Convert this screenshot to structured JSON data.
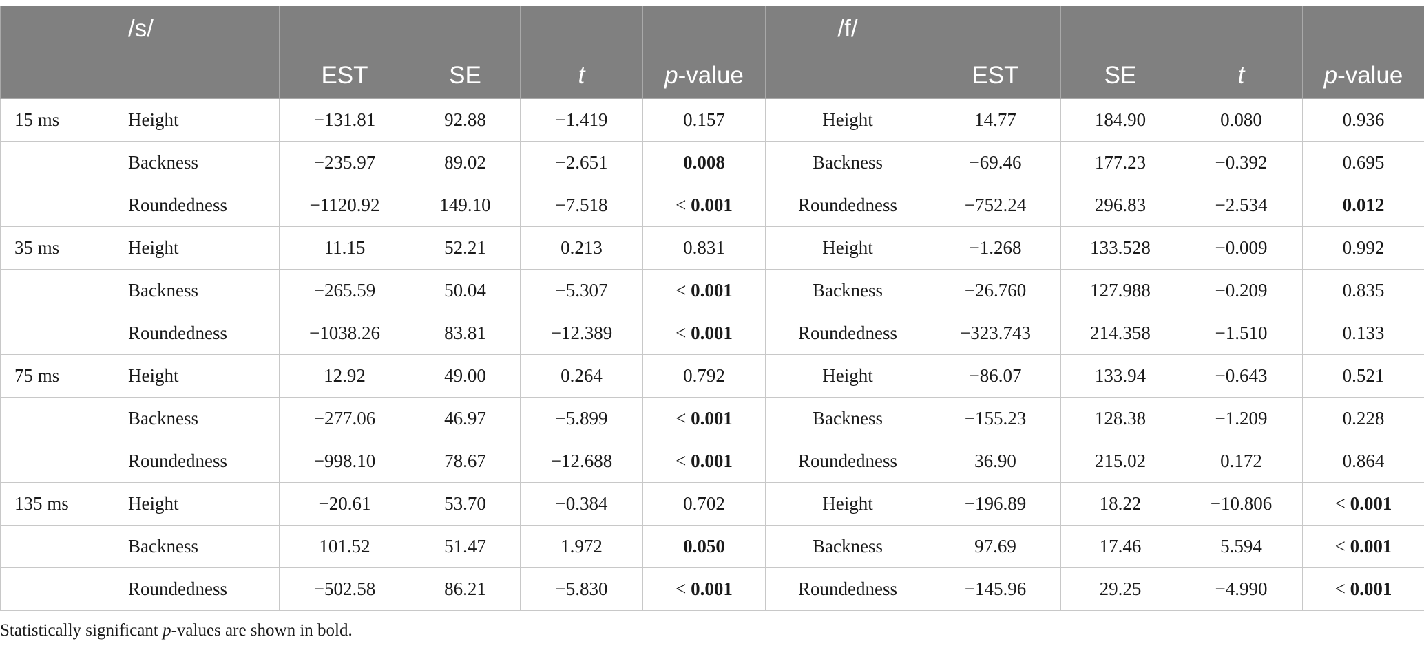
{
  "header": {
    "group_s": "/s/",
    "group_f": "/f/",
    "col_est": "EST",
    "col_se": "SE",
    "col_t": "t",
    "col_p_italic": "p",
    "col_p_rest": "-value"
  },
  "rows": [
    {
      "time": "15 ms",
      "label": "Height",
      "s": [
        "−131.81",
        "92.88",
        "−1.419",
        "0.157"
      ],
      "s_bold": false,
      "s_prefix": "",
      "f_label": "Height",
      "f": [
        "14.77",
        "184.90",
        "0.080",
        "0.936"
      ],
      "f_bold": false,
      "f_prefix": ""
    },
    {
      "time": "",
      "label": "Backness",
      "s": [
        "−235.97",
        "89.02",
        "−2.651",
        "0.008"
      ],
      "s_bold": true,
      "s_prefix": "",
      "f_label": "Backness",
      "f": [
        "−69.46",
        "177.23",
        "−0.392",
        "0.695"
      ],
      "f_bold": false,
      "f_prefix": ""
    },
    {
      "time": "",
      "label": "Roundedness",
      "s": [
        "−1120.92",
        "149.10",
        "−7.518",
        "0.001"
      ],
      "s_bold": true,
      "s_prefix": "< ",
      "f_label": "Roundedness",
      "f": [
        "−752.24",
        "296.83",
        "−2.534",
        "0.012"
      ],
      "f_bold": true,
      "f_prefix": ""
    },
    {
      "time": "35 ms",
      "label": "Height",
      "s": [
        "11.15",
        "52.21",
        "0.213",
        "0.831"
      ],
      "s_bold": false,
      "s_prefix": "",
      "f_label": "Height",
      "f": [
        "−1.268",
        "133.528",
        "−0.009",
        "0.992"
      ],
      "f_bold": false,
      "f_prefix": ""
    },
    {
      "time": "",
      "label": "Backness",
      "s": [
        "−265.59",
        "50.04",
        "−5.307",
        "0.001"
      ],
      "s_bold": true,
      "s_prefix": "< ",
      "f_label": "Backness",
      "f": [
        "−26.760",
        "127.988",
        "−0.209",
        "0.835"
      ],
      "f_bold": false,
      "f_prefix": ""
    },
    {
      "time": "",
      "label": "Roundedness",
      "s": [
        "−1038.26",
        "83.81",
        "−12.389",
        "0.001"
      ],
      "s_bold": true,
      "s_prefix": "< ",
      "f_label": "Roundedness",
      "f": [
        "−323.743",
        "214.358",
        "−1.510",
        "0.133"
      ],
      "f_bold": false,
      "f_prefix": ""
    },
    {
      "time": "75 ms",
      "label": "Height",
      "s": [
        "12.92",
        "49.00",
        "0.264",
        "0.792"
      ],
      "s_bold": false,
      "s_prefix": "",
      "f_label": "Height",
      "f": [
        "−86.07",
        "133.94",
        "−0.643",
        "0.521"
      ],
      "f_bold": false,
      "f_prefix": ""
    },
    {
      "time": "",
      "label": "Backness",
      "s": [
        "−277.06",
        "46.97",
        "−5.899",
        "0.001"
      ],
      "s_bold": true,
      "s_prefix": "< ",
      "f_label": "Backness",
      "f": [
        "−155.23",
        "128.38",
        "−1.209",
        "0.228"
      ],
      "f_bold": false,
      "f_prefix": ""
    },
    {
      "time": "",
      "label": "Roundedness",
      "s": [
        "−998.10",
        "78.67",
        "−12.688",
        "0.001"
      ],
      "s_bold": true,
      "s_prefix": "< ",
      "f_label": "Roundedness",
      "f": [
        "36.90",
        "215.02",
        "0.172",
        "0.864"
      ],
      "f_bold": false,
      "f_prefix": ""
    },
    {
      "time": "135 ms",
      "label": "Height",
      "s": [
        "−20.61",
        "53.70",
        "−0.384",
        "0.702"
      ],
      "s_bold": false,
      "s_prefix": "",
      "f_label": "Height",
      "f": [
        "−196.89",
        "18.22",
        "−10.806",
        "0.001"
      ],
      "f_bold": true,
      "f_prefix": "< "
    },
    {
      "time": "",
      "label": "Backness",
      "s": [
        "101.52",
        "51.47",
        "1.972",
        "0.050"
      ],
      "s_bold": true,
      "s_prefix": "",
      "f_label": "Backness",
      "f": [
        "97.69",
        "17.46",
        "5.594",
        "0.001"
      ],
      "f_bold": true,
      "f_prefix": "< "
    },
    {
      "time": "",
      "label": "Roundedness",
      "s": [
        "−502.58",
        "86.21",
        "−5.830",
        "0.001"
      ],
      "s_bold": true,
      "s_prefix": "< ",
      "f_label": "Roundedness",
      "f": [
        "−145.96",
        "29.25",
        "−4.990",
        "0.001"
      ],
      "f_bold": true,
      "f_prefix": "< "
    }
  ],
  "note": {
    "prefix": "Statistically significant ",
    "p": "p",
    "suffix": "-values are shown in bold."
  }
}
